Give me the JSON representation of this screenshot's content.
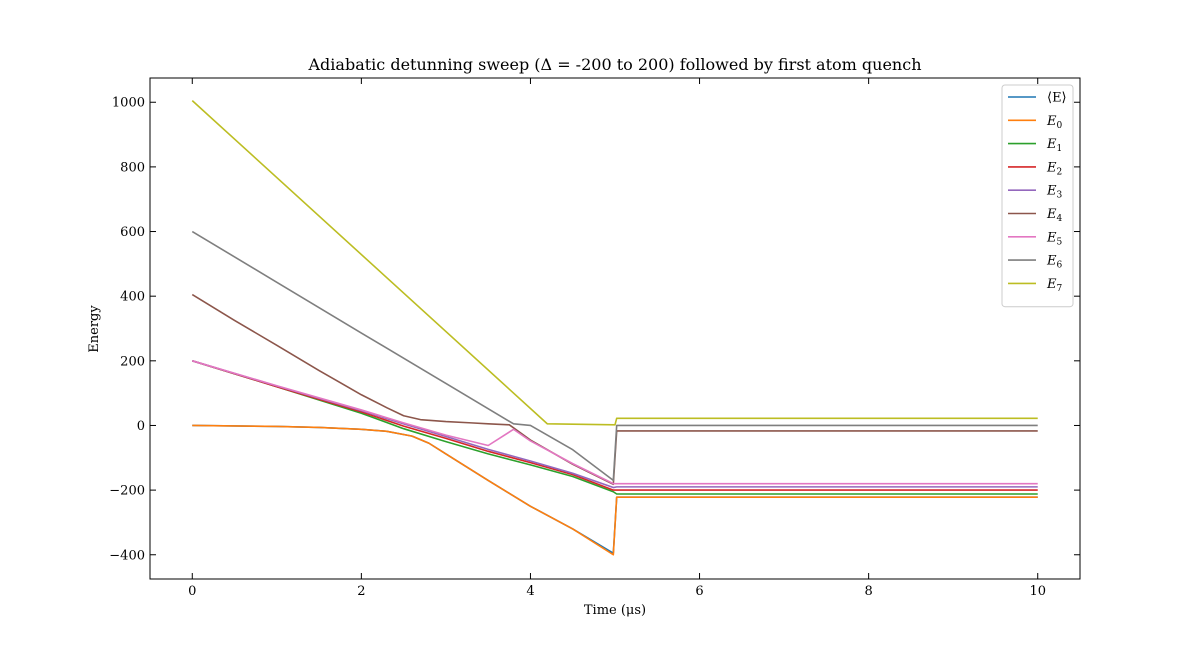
{
  "chart_data": {
    "type": "line",
    "title": "Adiabatic detunning sweep (Δ = -200 to 200) followed by first atom quench",
    "xlabel": "Time (μs)",
    "ylabel": "Energy",
    "xlim": [
      -0.5,
      10.5
    ],
    "ylim": [
      -475,
      1075
    ],
    "xticks": [
      0,
      2,
      4,
      6,
      8,
      10
    ],
    "yticks": [
      -400,
      -200,
      0,
      200,
      400,
      600,
      800,
      1000
    ],
    "grid": false,
    "legend_position": "top-right",
    "series": [
      {
        "name": "⟨E⟩",
        "legend_text": "⟨E⟩",
        "legend_sub": "",
        "color": "#1f77b4",
        "x": [
          0,
          1,
          1.5,
          2,
          2.3,
          2.6,
          2.8,
          3,
          3.5,
          4,
          4.5,
          4.98,
          5.02,
          10
        ],
        "y": [
          0,
          -3,
          -6,
          -12,
          -18,
          -33,
          -55,
          -88,
          -170,
          -250,
          -320,
          -395,
          -222,
          -222
        ]
      },
      {
        "name": "E0",
        "legend_text": "E",
        "legend_sub": "0",
        "color": "#ff7f0e",
        "x": [
          0,
          1,
          1.5,
          2,
          2.3,
          2.6,
          2.8,
          3,
          3.5,
          4,
          4.5,
          4.98,
          5.02,
          10
        ],
        "y": [
          0,
          -3,
          -6,
          -12,
          -18,
          -33,
          -55,
          -88,
          -170,
          -250,
          -320,
          -400,
          -222,
          -222
        ]
      },
      {
        "name": "E1",
        "legend_text": "E",
        "legend_sub": "1",
        "color": "#2ca02c",
        "x": [
          0,
          1,
          2,
          2.5,
          3,
          3.5,
          4,
          4.5,
          4.98,
          5.02,
          10
        ],
        "y": [
          200,
          120,
          38,
          -10,
          -50,
          -88,
          -122,
          -158,
          -205,
          -212,
          -212
        ]
      },
      {
        "name": "E2",
        "legend_text": "E",
        "legend_sub": "2",
        "color": "#d62728",
        "x": [
          0,
          1,
          2,
          2.5,
          3,
          3.5,
          4,
          4.5,
          4.98,
          5.02,
          10
        ],
        "y": [
          200,
          120,
          42,
          -2,
          -40,
          -80,
          -115,
          -152,
          -200,
          -200,
          -200
        ]
      },
      {
        "name": "E3",
        "legend_text": "E",
        "legend_sub": "3",
        "color": "#9467bd",
        "x": [
          0,
          1,
          2,
          2.5,
          3,
          3.5,
          4,
          4.5,
          4.98,
          5.02,
          10
        ],
        "y": [
          200,
          122,
          46,
          5,
          -34,
          -74,
          -110,
          -148,
          -192,
          -190,
          -190
        ]
      },
      {
        "name": "E4",
        "legend_text": "E",
        "legend_sub": "4",
        "color": "#8c564b",
        "x": [
          0,
          0.5,
          1,
          1.5,
          2,
          2.3,
          2.5,
          2.7,
          3,
          3.3,
          3.5,
          3.75,
          4,
          4.5,
          4.98,
          5.02,
          10
        ],
        "y": [
          405,
          325,
          248,
          170,
          95,
          55,
          30,
          18,
          12,
          8,
          5,
          2,
          -45,
          -120,
          -182,
          -17,
          -17
        ]
      },
      {
        "name": "E5",
        "legend_text": "E",
        "legend_sub": "5",
        "color": "#e377c2",
        "x": [
          0,
          1,
          2,
          2.5,
          3,
          3.5,
          3.8,
          4,
          4.5,
          4.98,
          5.02,
          10
        ],
        "y": [
          200,
          123,
          48,
          8,
          -30,
          -62,
          -12,
          -48,
          -118,
          -180,
          -180,
          -180
        ]
      },
      {
        "name": "E6",
        "legend_text": "E",
        "legend_sub": "6",
        "color": "#7f7f7f",
        "x": [
          0,
          1,
          2,
          3,
          3.8,
          4,
          4.5,
          4.98,
          5.02,
          10
        ],
        "y": [
          600,
          443,
          286,
          130,
          5,
          0,
          -75,
          -170,
          0,
          0
        ]
      },
      {
        "name": "E7",
        "legend_text": "E",
        "legend_sub": "7",
        "color": "#bcbd22",
        "x": [
          0,
          4.2,
          5.0,
          5.02,
          10
        ],
        "y": [
          1005,
          5,
          2,
          22,
          22
        ]
      }
    ]
  }
}
